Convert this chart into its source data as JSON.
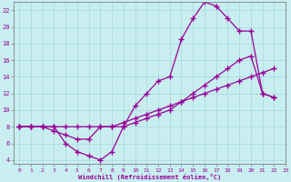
{
  "xlabel": "Windchill (Refroidissement éolien,°C)",
  "bg_color": "#c8eef0",
  "line_color": "#990099",
  "marker": "+",
  "markersize": 4,
  "linewidth": 0.9,
  "xlim": [
    -0.5,
    23
  ],
  "ylim": [
    3.5,
    23
  ],
  "xticks": [
    0,
    1,
    2,
    3,
    4,
    5,
    6,
    7,
    8,
    9,
    10,
    11,
    12,
    13,
    14,
    15,
    16,
    17,
    18,
    19,
    20,
    21,
    22,
    23
  ],
  "yticks": [
    4,
    6,
    8,
    10,
    12,
    14,
    16,
    18,
    20,
    22
  ],
  "line1_x": [
    0,
    1,
    2,
    3,
    4,
    5,
    6,
    7,
    8,
    9,
    10,
    11,
    12,
    13,
    14,
    15,
    16,
    17,
    18,
    19,
    20,
    21,
    22
  ],
  "line1_y": [
    8,
    8,
    8,
    8,
    6,
    5,
    4.5,
    4,
    5,
    8,
    10.5,
    12,
    13.5,
    14,
    18.5,
    21,
    23,
    22.5,
    21,
    19.5,
    19.5,
    12,
    11.5
  ],
  "line2_x": [
    0,
    1,
    2,
    3,
    4,
    5,
    6,
    7,
    8,
    9,
    10,
    11,
    12,
    13,
    14,
    15,
    16,
    17,
    18,
    19,
    20,
    21,
    22
  ],
  "line2_y": [
    8,
    8,
    8,
    7.5,
    7,
    6.5,
    6.5,
    8,
    8,
    8,
    8.5,
    9,
    9.5,
    10,
    11,
    12,
    13,
    14,
    15,
    16,
    16.5,
    12,
    11.5
  ],
  "line3_x": [
    0,
    1,
    2,
    3,
    4,
    5,
    6,
    7,
    8,
    9,
    10,
    11,
    12,
    13,
    14,
    15,
    16,
    17,
    18,
    19,
    20,
    21,
    22
  ],
  "line3_y": [
    8,
    8,
    8,
    8,
    8,
    8,
    8,
    8,
    8,
    8.5,
    9,
    9.5,
    10,
    10.5,
    11,
    11.5,
    12,
    12.5,
    13,
    13.5,
    14,
    14.5,
    15
  ]
}
